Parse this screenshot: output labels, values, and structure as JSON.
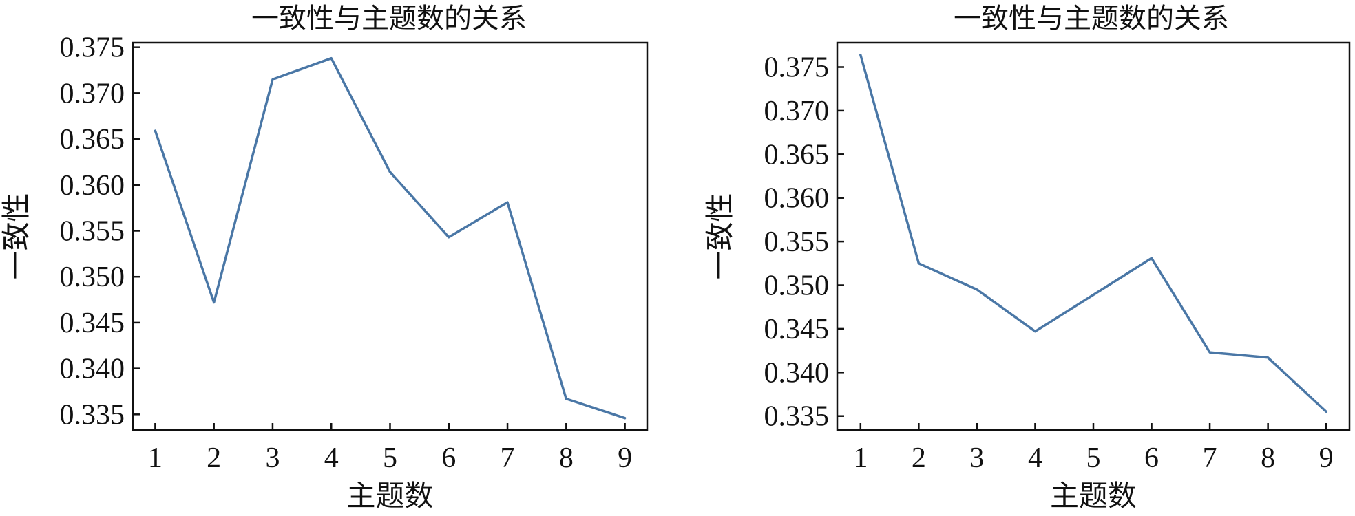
{
  "chart_data": [
    {
      "type": "line",
      "title": "一致性与主题数的关系",
      "xlabel": "主题数",
      "ylabel": "一致性",
      "x": [
        1,
        2,
        3,
        4,
        5,
        6,
        7,
        8,
        9
      ],
      "xticks": [
        "1",
        "2",
        "3",
        "4",
        "5",
        "6",
        "7",
        "8",
        "9"
      ],
      "xlim": [
        0.62,
        9.38
      ],
      "ylim": [
        0.3333,
        0.3755
      ],
      "yticks": [
        "0.335",
        "0.340",
        "0.345",
        "0.350",
        "0.355",
        "0.360",
        "0.365",
        "0.370",
        "0.375"
      ],
      "series": [
        {
          "values": [
            0.3659,
            0.3472,
            0.3715,
            0.3738,
            0.3614,
            0.3543,
            0.3581,
            0.3367,
            0.3346
          ]
        }
      ],
      "grid": false,
      "color": "#4a77a6"
    },
    {
      "type": "line",
      "title": "一致性与主题数的关系",
      "xlabel": "主题数",
      "ylabel": "一致性",
      "x": [
        1,
        2,
        3,
        4,
        5,
        6,
        7,
        8,
        9
      ],
      "xticks": [
        "1",
        "2",
        "3",
        "4",
        "5",
        "6",
        "7",
        "8",
        "9"
      ],
      "xlim": [
        0.6,
        9.4
      ],
      "ylim": [
        0.3334,
        0.3778
      ],
      "yticks": [
        "0.335",
        "0.340",
        "0.345",
        "0.350",
        "0.355",
        "0.360",
        "0.365",
        "0.370",
        "0.375"
      ],
      "series": [
        {
          "values": [
            0.3764,
            0.3525,
            0.3495,
            0.3447,
            0.3489,
            0.3531,
            0.3423,
            0.3417,
            0.3355
          ]
        }
      ],
      "grid": false,
      "color": "#4a77a6"
    }
  ]
}
